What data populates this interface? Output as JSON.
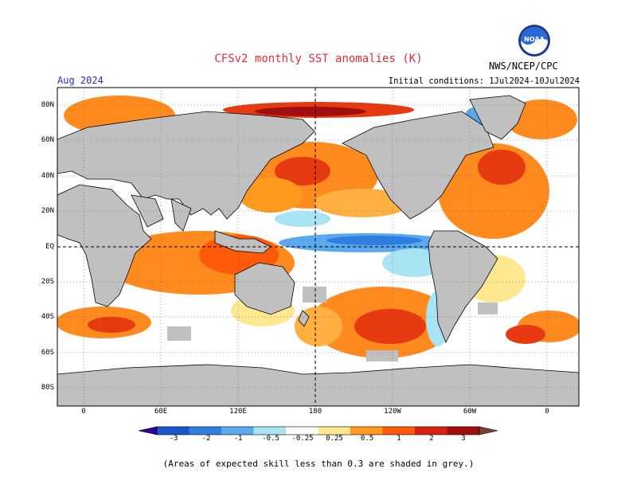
{
  "header": {
    "title": "CFSv2 monthly SST anomalies (K)",
    "month": "Aug 2024",
    "initial_conditions": "Initial conditions: 1Jul2024-10Jul2024",
    "agency": "NWS/NCEP/CPC",
    "logo_text": "NOAA"
  },
  "map": {
    "projection": "equirectangular",
    "lat_labels": [
      "80N",
      "60N",
      "40N",
      "20N",
      "EQ",
      "20S",
      "40S",
      "60S",
      "80S"
    ],
    "lon_labels": [
      "0",
      "60E",
      "120E",
      "180",
      "120W",
      "60W",
      "0"
    ],
    "land_color": "#c0c0c0",
    "ocean_base_color": "#ffffff",
    "features": [
      "Equatorial Pacific cold tongue (negative anomalies)",
      "North Pacific warm anomalies near 40N",
      "North Atlantic warm anomalies",
      "Southern Ocean warm anomalies"
    ]
  },
  "colorbar": {
    "ticks": [
      "-3",
      "-2",
      "-1",
      "-0.5",
      "-0.25",
      "0.25",
      "0.5",
      "1",
      "2",
      "3"
    ],
    "colors": [
      "#2a00a0",
      "#1a55d0",
      "#2f7fe0",
      "#5aa8ee",
      "#a8e4f4",
      "#ffffff",
      "#ffe890",
      "#ff9a20",
      "#ff5a0a",
      "#d82010",
      "#a00e0e",
      "#7a4030"
    ]
  },
  "footer": {
    "note": "(Areas of expected skill less than 0.3 are shaded in grey.)"
  }
}
